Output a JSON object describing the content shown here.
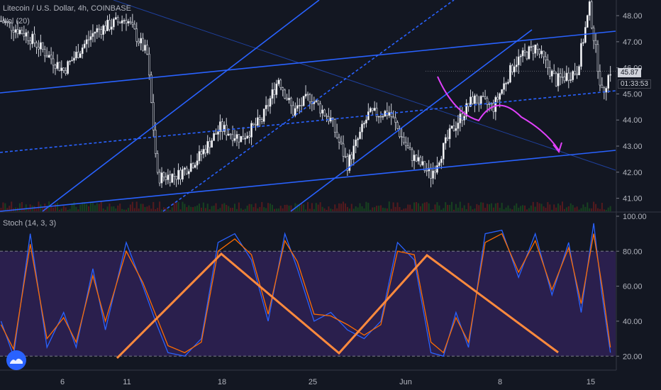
{
  "header": {
    "symbol": "Litecoin / U.S. Dollar, 4h, COINBASE",
    "volume": "Vol (20)"
  },
  "stoch_header": "Stoch (14, 3, 3)",
  "price_label": "45.87",
  "countdown": "01:33:53",
  "colors": {
    "background": "#131722",
    "trendline": "#2962ff",
    "forecast_arrow": "#e040fb",
    "zigzag": "#ff8a3d",
    "stoch_k": "#2962ff",
    "stoch_d": "#ff6d00",
    "stoch_band": "#2a1f4d"
  },
  "chart_data": [
    {
      "type": "candlestick",
      "title": "Litecoin / U.S. Dollar, 4h, COINBASE",
      "y_ticks": [
        "48.00",
        "47.00",
        "46.00",
        "45.00",
        "44.00",
        "43.00",
        "42.00",
        "41.00"
      ],
      "ylim": [
        40.5,
        48.6
      ],
      "last_price": 45.87,
      "x_ticks": [
        "6",
        "11",
        "18",
        "25",
        "Jun",
        "8",
        "15"
      ],
      "close_path": [
        {
          "bar": 0,
          "close": 47.8
        },
        {
          "bar": 12,
          "close": 47.3
        },
        {
          "bar": 30,
          "close": 45.9
        },
        {
          "bar": 45,
          "close": 47.4
        },
        {
          "bar": 60,
          "close": 47.9
        },
        {
          "bar": 70,
          "close": 46.5
        },
        {
          "bar": 75,
          "close": 41.8
        },
        {
          "bar": 85,
          "close": 41.9
        },
        {
          "bar": 95,
          "close": 42.6
        },
        {
          "bar": 105,
          "close": 43.7
        },
        {
          "bar": 115,
          "close": 43.3
        },
        {
          "bar": 125,
          "close": 44.0
        },
        {
          "bar": 133,
          "close": 45.6
        },
        {
          "bar": 140,
          "close": 44.3
        },
        {
          "bar": 148,
          "close": 44.9
        },
        {
          "bar": 158,
          "close": 44.0
        },
        {
          "bar": 166,
          "close": 42.3
        },
        {
          "bar": 176,
          "close": 44.2
        },
        {
          "bar": 186,
          "close": 44.3
        },
        {
          "bar": 196,
          "close": 42.7
        },
        {
          "bar": 206,
          "close": 41.9
        },
        {
          "bar": 216,
          "close": 43.6
        },
        {
          "bar": 226,
          "close": 44.8
        },
        {
          "bar": 236,
          "close": 44.5
        },
        {
          "bar": 246,
          "close": 46.2
        },
        {
          "bar": 256,
          "close": 46.8
        },
        {
          "bar": 266,
          "close": 45.5
        },
        {
          "bar": 276,
          "close": 45.9
        },
        {
          "bar": 282,
          "close": 48.3
        },
        {
          "bar": 288,
          "close": 45.0
        },
        {
          "bar": 292,
          "close": 45.9
        }
      ]
    },
    {
      "type": "line",
      "title": "Stoch (14, 3, 3)",
      "y_ticks": [
        "100.00",
        "80.00",
        "60.00",
        "40.00",
        "20.00"
      ],
      "ylim": [
        12,
        102
      ],
      "band": [
        20,
        80
      ],
      "series": [
        {
          "values": [
            {
              "bar": 0,
              "value": 40
            },
            {
              "bar": 6,
              "value": 20
            },
            {
              "bar": 14,
              "value": 90
            },
            {
              "bar": 22,
              "value": 25
            },
            {
              "bar": 30,
              "value": 45
            },
            {
              "bar": 36,
              "value": 25
            },
            {
              "bar": 44,
              "value": 70
            },
            {
              "bar": 50,
              "value": 35
            },
            {
              "bar": 60,
              "value": 85
            },
            {
              "bar": 68,
              "value": 60
            },
            {
              "bar": 74,
              "value": 40
            },
            {
              "bar": 80,
              "value": 22
            },
            {
              "bar": 88,
              "value": 20
            },
            {
              "bar": 96,
              "value": 30
            },
            {
              "bar": 104,
              "value": 85
            },
            {
              "bar": 112,
              "value": 90
            },
            {
              "bar": 120,
              "value": 75
            },
            {
              "bar": 128,
              "value": 40
            },
            {
              "bar": 136,
              "value": 90
            },
            {
              "bar": 142,
              "value": 70
            },
            {
              "bar": 150,
              "value": 40
            },
            {
              "bar": 158,
              "value": 45
            },
            {
              "bar": 166,
              "value": 35
            },
            {
              "bar": 174,
              "value": 30
            },
            {
              "bar": 182,
              "value": 40
            },
            {
              "bar": 190,
              "value": 85
            },
            {
              "bar": 198,
              "value": 75
            },
            {
              "bar": 206,
              "value": 22
            },
            {
              "bar": 212,
              "value": 20
            },
            {
              "bar": 218,
              "value": 45
            },
            {
              "bar": 224,
              "value": 25
            },
            {
              "bar": 232,
              "value": 90
            },
            {
              "bar": 240,
              "value": 92
            },
            {
              "bar": 248,
              "value": 65
            },
            {
              "bar": 256,
              "value": 90
            },
            {
              "bar": 264,
              "value": 55
            },
            {
              "bar": 272,
              "value": 85
            },
            {
              "bar": 278,
              "value": 45
            },
            {
              "bar": 284,
              "value": 96
            },
            {
              "bar": 288,
              "value": 55
            },
            {
              "bar": 292,
              "value": 22
            }
          ]
        },
        {
          "values": [
            {
              "bar": 0,
              "value": 38
            },
            {
              "bar": 6,
              "value": 24
            },
            {
              "bar": 14,
              "value": 84
            },
            {
              "bar": 22,
              "value": 30
            },
            {
              "bar": 30,
              "value": 42
            },
            {
              "bar": 36,
              "value": 28
            },
            {
              "bar": 44,
              "value": 66
            },
            {
              "bar": 50,
              "value": 40
            },
            {
              "bar": 60,
              "value": 80
            },
            {
              "bar": 68,
              "value": 62
            },
            {
              "bar": 74,
              "value": 44
            },
            {
              "bar": 80,
              "value": 26
            },
            {
              "bar": 88,
              "value": 22
            },
            {
              "bar": 96,
              "value": 28
            },
            {
              "bar": 104,
              "value": 80
            },
            {
              "bar": 112,
              "value": 87
            },
            {
              "bar": 120,
              "value": 78
            },
            {
              "bar": 128,
              "value": 44
            },
            {
              "bar": 136,
              "value": 86
            },
            {
              "bar": 142,
              "value": 74
            },
            {
              "bar": 150,
              "value": 44
            },
            {
              "bar": 158,
              "value": 43
            },
            {
              "bar": 166,
              "value": 38
            },
            {
              "bar": 174,
              "value": 32
            },
            {
              "bar": 182,
              "value": 38
            },
            {
              "bar": 190,
              "value": 80
            },
            {
              "bar": 198,
              "value": 78
            },
            {
              "bar": 206,
              "value": 28
            },
            {
              "bar": 212,
              "value": 22
            },
            {
              "bar": 218,
              "value": 42
            },
            {
              "bar": 224,
              "value": 28
            },
            {
              "bar": 232,
              "value": 85
            },
            {
              "bar": 240,
              "value": 90
            },
            {
              "bar": 248,
              "value": 68
            },
            {
              "bar": 256,
              "value": 86
            },
            {
              "bar": 264,
              "value": 58
            },
            {
              "bar": 272,
              "value": 82
            },
            {
              "bar": 278,
              "value": 50
            },
            {
              "bar": 284,
              "value": 90
            },
            {
              "bar": 288,
              "value": 60
            },
            {
              "bar": 292,
              "value": 25
            }
          ]
        }
      ]
    }
  ]
}
